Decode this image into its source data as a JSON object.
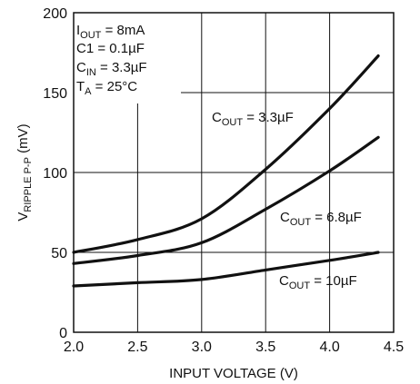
{
  "chart_data": {
    "type": "line",
    "title": "",
    "xlabel": "INPUT VOLTAGE (V)",
    "ylabel": {
      "main": "V",
      "sub": "RIPPLE P-P",
      "unit": " (mV)"
    },
    "xlim": [
      2.0,
      4.5
    ],
    "ylim": [
      0,
      200
    ],
    "x_ticks": [
      "2.0",
      "2.5",
      "3.0",
      "3.5",
      "4.0",
      "4.5"
    ],
    "y_ticks": [
      "0",
      "50",
      "100",
      "150",
      "200"
    ],
    "grid": true,
    "conditions": [
      {
        "main": "I",
        "sub": "OUT",
        "rest": " = 8mA"
      },
      {
        "main": "C1 = 0.1µF",
        "sub": "",
        "rest": ""
      },
      {
        "main": "C",
        "sub": "IN",
        "rest": " = 3.3µF"
      },
      {
        "main": "T",
        "sub": "A",
        "rest": " = 25°C"
      }
    ],
    "series": [
      {
        "label": {
          "main": "C",
          "sub": "OUT",
          "rest": " = 3.3µF"
        },
        "x": [
          2.0,
          2.5,
          3.0,
          3.5,
          4.0,
          4.38
        ],
        "y": [
          50,
          58,
          71,
          102,
          140,
          173
        ]
      },
      {
        "label": {
          "main": "C",
          "sub": "OUT",
          "rest": " = 6.8µF"
        },
        "x": [
          2.0,
          2.5,
          3.0,
          3.5,
          4.0,
          4.38
        ],
        "y": [
          43,
          48,
          56,
          77,
          101,
          122
        ]
      },
      {
        "label": {
          "main": "C",
          "sub": "OUT",
          "rest": " = 10µF"
        },
        "x": [
          2.0,
          2.5,
          3.0,
          3.5,
          4.0,
          4.38
        ],
        "y": [
          29,
          31,
          33,
          39,
          45,
          50
        ]
      }
    ]
  }
}
